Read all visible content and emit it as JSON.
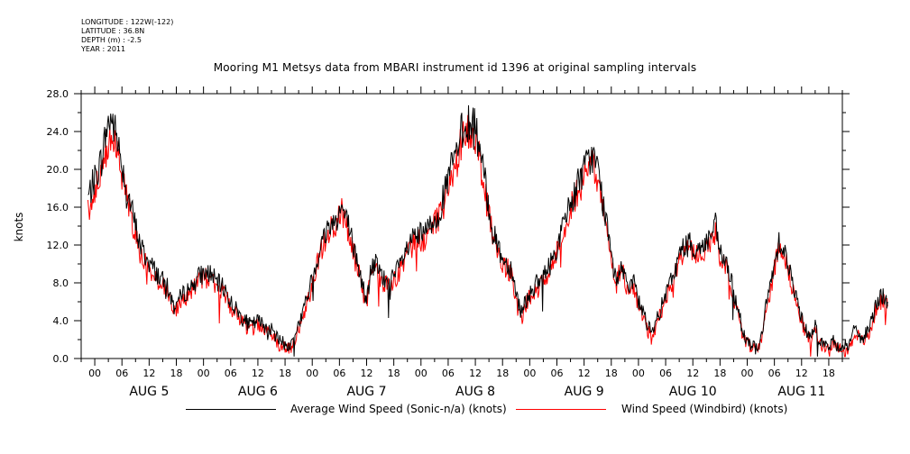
{
  "meta": {
    "longitude": "LONGITUDE : 122W(-122)",
    "latitude": "LATITUDE : 36.8N",
    "depth": "DEPTH (m) : -2.5",
    "year": "YEAR : 2011"
  },
  "chart_data": {
    "type": "line",
    "title": "Mooring M1 Metsys data from MBARI instrument id 1396 at original sampling intervals",
    "ylabel": "knots",
    "xlabel": "",
    "ylim": [
      0,
      28
    ],
    "y_ticks": [
      "0.0",
      "4.0",
      "8.0",
      "12.0",
      "16.0",
      "20.0",
      "24.0",
      "28.0"
    ],
    "x_range_hours": [
      -3,
      165
    ],
    "hour_ticks": [
      "00",
      "06",
      "12",
      "18",
      "00",
      "06",
      "12",
      "18",
      "00",
      "06",
      "12",
      "18",
      "00",
      "06",
      "12",
      "18",
      "00",
      "06",
      "12",
      "18",
      "00",
      "06",
      "12",
      "18",
      "00",
      "06",
      "12",
      "18"
    ],
    "day_labels": [
      "AUG  5",
      "AUG  6",
      "AUG  7",
      "AUG  8",
      "AUG  9",
      "AUG 10",
      "AUG 11"
    ],
    "grid": false,
    "legend_position": "bottom",
    "series": [
      {
        "name": "Average Wind Speed (Sonic-n/a) (knots)",
        "color": "#000000",
        "points": [
          [
            -1.5,
            17
          ],
          [
            0,
            19
          ],
          [
            1.5,
            21
          ],
          [
            2.5,
            24
          ],
          [
            3.5,
            25.5
          ],
          [
            4.5,
            24
          ],
          [
            5.5,
            22
          ],
          [
            7,
            18
          ],
          [
            8.5,
            15
          ],
          [
            10,
            12
          ],
          [
            11.5,
            10.5
          ],
          [
            13,
            9.5
          ],
          [
            14.5,
            8.5
          ],
          [
            16,
            7.5
          ],
          [
            17.5,
            5.5
          ],
          [
            19,
            6.5
          ],
          [
            21,
            7.5
          ],
          [
            22.5,
            8.5
          ],
          [
            24,
            9
          ],
          [
            25.5,
            9
          ],
          [
            27,
            8
          ],
          [
            28.5,
            7.5
          ],
          [
            30,
            6
          ],
          [
            31.5,
            5
          ],
          [
            33,
            4
          ],
          [
            34.5,
            3.5
          ],
          [
            36,
            4
          ],
          [
            37.5,
            3.5
          ],
          [
            39,
            3
          ],
          [
            40.5,
            2
          ],
          [
            42,
            1.5
          ],
          [
            43,
            1.2
          ],
          [
            44.5,
            3
          ],
          [
            46,
            5
          ],
          [
            47.5,
            7.5
          ],
          [
            48.5,
            9.5
          ],
          [
            50,
            12
          ],
          [
            51.5,
            14
          ],
          [
            53,
            14.5
          ],
          [
            54.5,
            16
          ],
          [
            56,
            14
          ],
          [
            57,
            12
          ],
          [
            58,
            10
          ],
          [
            59,
            8
          ],
          [
            60,
            6
          ],
          [
            61,
            9.5
          ],
          [
            62,
            10
          ],
          [
            63.5,
            8.5
          ],
          [
            65,
            8
          ],
          [
            66.5,
            9
          ],
          [
            68,
            10.5
          ],
          [
            69.5,
            12
          ],
          [
            71,
            13
          ],
          [
            72.5,
            13
          ],
          [
            74,
            14
          ],
          [
            75.5,
            15
          ],
          [
            77,
            17
          ],
          [
            78.5,
            20
          ],
          [
            80,
            22
          ],
          [
            81,
            24
          ],
          [
            82.5,
            25
          ],
          [
            84,
            24.5
          ],
          [
            85,
            22
          ],
          [
            86,
            19
          ],
          [
            87,
            16
          ],
          [
            88,
            13
          ],
          [
            89,
            12
          ],
          [
            90,
            10.5
          ],
          [
            91,
            10
          ],
          [
            92,
            9.5
          ],
          [
            93,
            7
          ],
          [
            94,
            5
          ],
          [
            95,
            6
          ],
          [
            96.5,
            7.5
          ],
          [
            98,
            8
          ],
          [
            99.5,
            9
          ],
          [
            101,
            10.5
          ],
          [
            102.5,
            12.5
          ],
          [
            104,
            15
          ],
          [
            105.5,
            17
          ],
          [
            107,
            19
          ],
          [
            108.5,
            20.5
          ],
          [
            110,
            21.5
          ],
          [
            111,
            20
          ],
          [
            112,
            17
          ],
          [
            113,
            14
          ],
          [
            114,
            11
          ],
          [
            115,
            8
          ],
          [
            116,
            10
          ],
          [
            117,
            9
          ],
          [
            118,
            7
          ],
          [
            119,
            8
          ],
          [
            120,
            6
          ],
          [
            121,
            5
          ],
          [
            122,
            3.5
          ],
          [
            123,
            2.5
          ],
          [
            124,
            4
          ],
          [
            125.5,
            6
          ],
          [
            127,
            8
          ],
          [
            128.5,
            10
          ],
          [
            130,
            12
          ],
          [
            131.5,
            12
          ],
          [
            133,
            11.5
          ],
          [
            134.5,
            12
          ],
          [
            136,
            13
          ],
          [
            137,
            14
          ],
          [
            138,
            11
          ],
          [
            139,
            10.5
          ],
          [
            140,
            9
          ],
          [
            141,
            7
          ],
          [
            142,
            5
          ],
          [
            143,
            3
          ],
          [
            144,
            2
          ],
          [
            145,
            1.5
          ],
          [
            146,
            1
          ],
          [
            147,
            2
          ],
          [
            148,
            5
          ],
          [
            149,
            7.5
          ],
          [
            150,
            10
          ],
          [
            151,
            12.5
          ],
          [
            152,
            12
          ],
          [
            153,
            10
          ],
          [
            154,
            8
          ],
          [
            155,
            6
          ],
          [
            156,
            4.5
          ],
          [
            157,
            3
          ],
          [
            158,
            2.5
          ],
          [
            159,
            3.5
          ],
          [
            160,
            2
          ],
          [
            161,
            1.5
          ],
          [
            162,
            1.2
          ],
          [
            163,
            1.8
          ],
          [
            164,
            1.2
          ],
          [
            165,
            1.5
          ],
          [
            166,
            1.2
          ],
          [
            167,
            2
          ],
          [
            168,
            3.5
          ],
          [
            169,
            2
          ],
          [
            170,
            2.5
          ],
          [
            171,
            3
          ],
          [
            172,
            5
          ],
          [
            173,
            6.5
          ],
          [
            174,
            6.5
          ],
          [
            175,
            6
          ]
        ]
      },
      {
        "name": "Wind Speed (Windbird) (knots)",
        "color": "#ff0000",
        "points": [
          [
            -1.5,
            15.5
          ],
          [
            0,
            17.5
          ],
          [
            1.5,
            19.5
          ],
          [
            2.5,
            22
          ],
          [
            3.5,
            24
          ],
          [
            4.5,
            22.5
          ],
          [
            5.5,
            20.5
          ],
          [
            7,
            17
          ],
          [
            8.5,
            14
          ],
          [
            10,
            11
          ],
          [
            11.5,
            10
          ],
          [
            13,
            9
          ],
          [
            14.5,
            8
          ],
          [
            16,
            7
          ],
          [
            17.5,
            5
          ],
          [
            19,
            6
          ],
          [
            21,
            7
          ],
          [
            22.5,
            8
          ],
          [
            24,
            8.5
          ],
          [
            25.5,
            8.5
          ],
          [
            27,
            7.5
          ],
          [
            28.5,
            7
          ],
          [
            30,
            5.5
          ],
          [
            31.5,
            4.5
          ],
          [
            33,
            3.5
          ],
          [
            34.5,
            3
          ],
          [
            36,
            3.5
          ],
          [
            37.5,
            3
          ],
          [
            39,
            2.5
          ],
          [
            40.5,
            1.5
          ],
          [
            42,
            1.2
          ],
          [
            43,
            0.9
          ],
          [
            44.5,
            2.5
          ],
          [
            46,
            4.5
          ],
          [
            47.5,
            7
          ],
          [
            48.5,
            9
          ],
          [
            50,
            11.5
          ],
          [
            51.5,
            13.5
          ],
          [
            53,
            14
          ],
          [
            54.5,
            15.5
          ],
          [
            56,
            13.5
          ],
          [
            57,
            11.5
          ],
          [
            58,
            9.5
          ],
          [
            59,
            7.5
          ],
          [
            60,
            5.5
          ],
          [
            61,
            9
          ],
          [
            62,
            9.5
          ],
          [
            63.5,
            8
          ],
          [
            65,
            7.5
          ],
          [
            66.5,
            8.5
          ],
          [
            68,
            10
          ],
          [
            69.5,
            11.5
          ],
          [
            71,
            12.5
          ],
          [
            72.5,
            12.5
          ],
          [
            74,
            13.5
          ],
          [
            75.5,
            14.5
          ],
          [
            77,
            16
          ],
          [
            78.5,
            19
          ],
          [
            80,
            21
          ],
          [
            81,
            23
          ],
          [
            82.5,
            24
          ],
          [
            84,
            23.5
          ],
          [
            85,
            21
          ],
          [
            86,
            18
          ],
          [
            87,
            15
          ],
          [
            88,
            12.5
          ],
          [
            89,
            11.5
          ],
          [
            90,
            10
          ],
          [
            91,
            9.5
          ],
          [
            92,
            9
          ],
          [
            93,
            6
          ],
          [
            94,
            4
          ],
          [
            95,
            5.5
          ],
          [
            96.5,
            7
          ],
          [
            98,
            7.5
          ],
          [
            99.5,
            8.5
          ],
          [
            101,
            10
          ],
          [
            102.5,
            12
          ],
          [
            104,
            14.5
          ],
          [
            105.5,
            16.5
          ],
          [
            107,
            18
          ],
          [
            108.5,
            19.5
          ],
          [
            110,
            20.5
          ],
          [
            111,
            19
          ],
          [
            112,
            16
          ],
          [
            113,
            13
          ],
          [
            114,
            10.5
          ],
          [
            115,
            7.5
          ],
          [
            116,
            9.5
          ],
          [
            117,
            8.5
          ],
          [
            118,
            6.5
          ],
          [
            119,
            7.5
          ],
          [
            120,
            5.5
          ],
          [
            121,
            4.5
          ],
          [
            122,
            3
          ],
          [
            123,
            2
          ],
          [
            124,
            3.5
          ],
          [
            125.5,
            5.5
          ],
          [
            127,
            7.5
          ],
          [
            128.5,
            9.5
          ],
          [
            130,
            11.5
          ],
          [
            131.5,
            11.5
          ],
          [
            133,
            11
          ],
          [
            134.5,
            11.5
          ],
          [
            136,
            12.5
          ],
          [
            137,
            13.5
          ],
          [
            138,
            10.5
          ],
          [
            139,
            10
          ],
          [
            140,
            8.5
          ],
          [
            141,
            6.5
          ],
          [
            142,
            4.5
          ],
          [
            143,
            2.5
          ],
          [
            144,
            1.5
          ],
          [
            145,
            1.2
          ],
          [
            146,
            0.8
          ],
          [
            147,
            1.5
          ],
          [
            148,
            4.5
          ],
          [
            149,
            7
          ],
          [
            150,
            9.5
          ],
          [
            151,
            12
          ],
          [
            152,
            11.5
          ],
          [
            153,
            9.5
          ],
          [
            154,
            7.5
          ],
          [
            155,
            5.5
          ],
          [
            156,
            4
          ],
          [
            157,
            2.5
          ],
          [
            158,
            2
          ],
          [
            159,
            3
          ],
          [
            160,
            1.5
          ],
          [
            161,
            1.2
          ],
          [
            162,
            0.8
          ],
          [
            163,
            1.5
          ],
          [
            164,
            0.9
          ],
          [
            165,
            1.2
          ],
          [
            166,
            0.9
          ],
          [
            167,
            1.5
          ],
          [
            168,
            3
          ],
          [
            169,
            1.8
          ],
          [
            170,
            2
          ],
          [
            171,
            2.5
          ],
          [
            172,
            4.5
          ],
          [
            173,
            6
          ],
          [
            174,
            6
          ],
          [
            175,
            5.5
          ]
        ]
      }
    ]
  }
}
